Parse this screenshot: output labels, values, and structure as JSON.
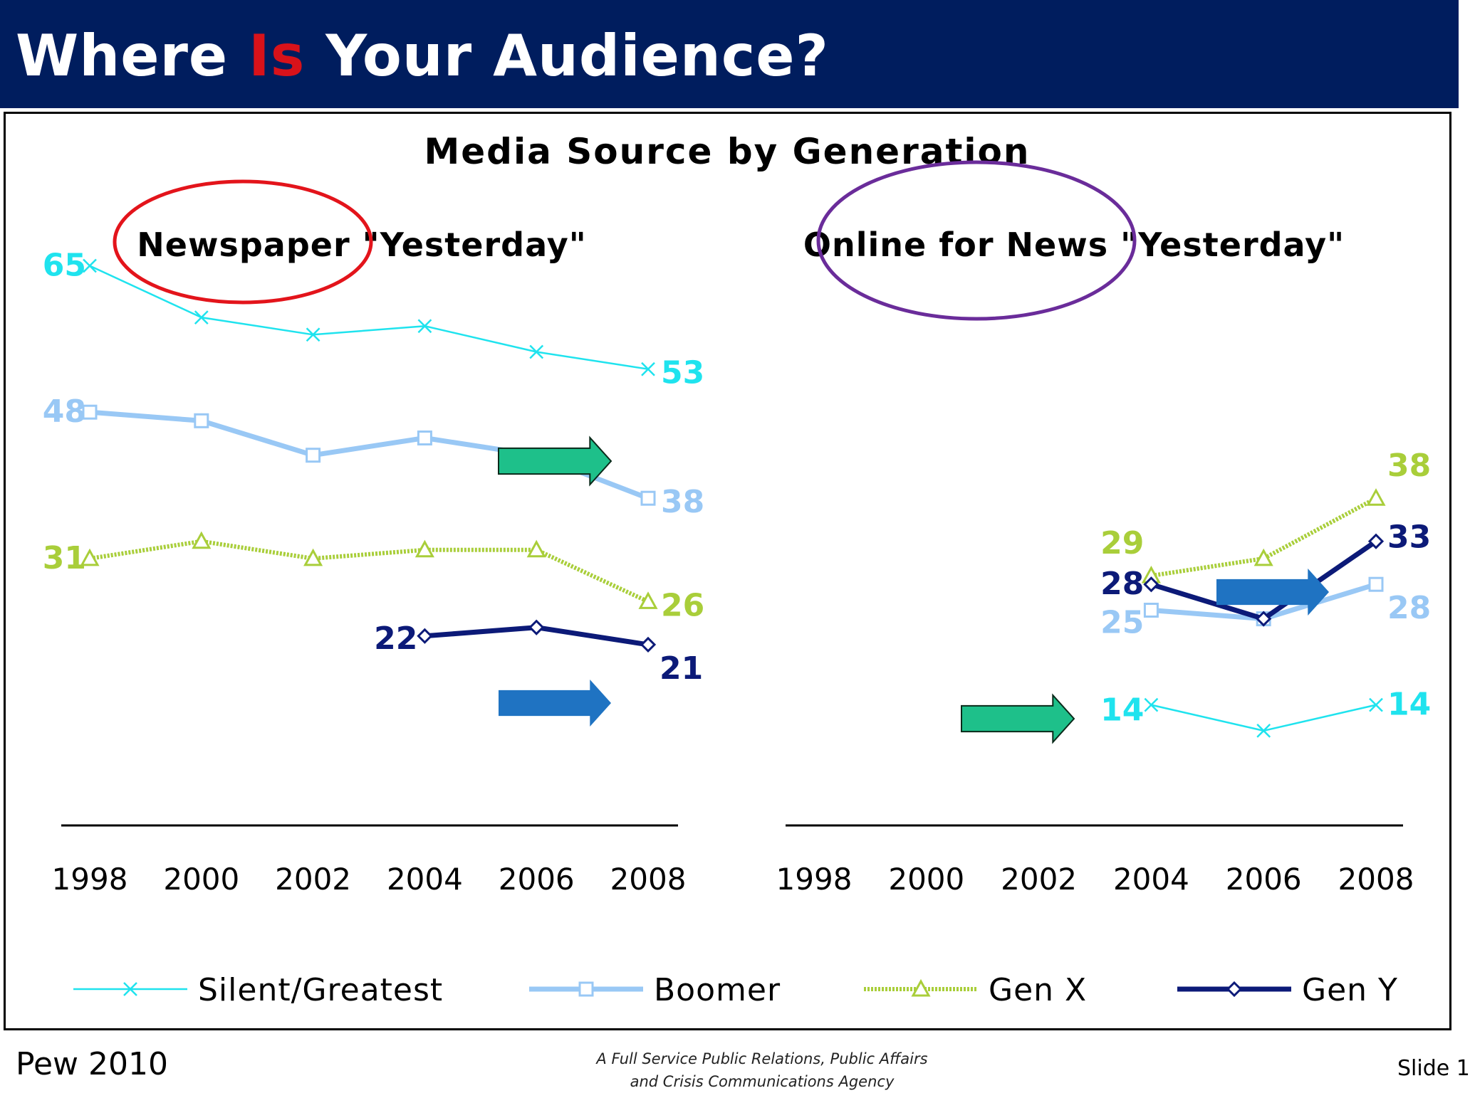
{
  "slide": {
    "title_part1": "Where ",
    "title_accent": "Is",
    "title_part2": " Your Audience?",
    "source": "Pew 2010",
    "tagline_line1": "A Full Service Public Relations, Public Affairs",
    "tagline_line2": "and Crisis Communications Agency",
    "slide_number": "Slide 1",
    "colors": {
      "header_bg": "#001d5e",
      "accent": "#d8121a"
    }
  },
  "chart_data": {
    "type": "line",
    "title": "Media Source by Generation",
    "x": [
      1998,
      2000,
      2002,
      2004,
      2006,
      2008
    ],
    "legend": [
      {
        "name": "Silent/Greatest",
        "color": "#1fe3ee",
        "marker": "x"
      },
      {
        "name": "Boomer",
        "color": "#99c8f5",
        "marker": "square"
      },
      {
        "name": "Gen X",
        "color": "#a9ce3a",
        "marker": "triangle"
      },
      {
        "name": "Gen Y",
        "color": "#0c1a78",
        "marker": "diamond"
      }
    ],
    "legend_position": "bottom",
    "grid": false,
    "panels": [
      {
        "title_highlight": "Newspaper",
        "title_rest": " \"Yesterday\"",
        "highlight_color": "#e3141b",
        "ylim": [
          0,
          80
        ],
        "series": [
          {
            "name": "Silent/Greatest",
            "x": [
              1998,
              2000,
              2002,
              2004,
              2006,
              2008
            ],
            "values": [
              65,
              59,
              57,
              58,
              55,
              53
            ],
            "labels": {
              "start": "65",
              "end": "53"
            }
          },
          {
            "name": "Boomer",
            "x": [
              1998,
              2000,
              2002,
              2004,
              2006,
              2008
            ],
            "values": [
              48,
              47,
              43,
              45,
              43,
              38
            ],
            "labels": {
              "start": "48",
              "end": "38"
            }
          },
          {
            "name": "Gen X",
            "x": [
              1998,
              2000,
              2002,
              2004,
              2006,
              2008
            ],
            "values": [
              31,
              33,
              31,
              32,
              32,
              26
            ],
            "labels": {
              "start": "31",
              "end": "26"
            }
          },
          {
            "name": "Gen Y",
            "x": [
              2004,
              2006,
              2008
            ],
            "values": [
              22,
              23,
              21
            ],
            "labels": {
              "start": "22",
              "end": "21"
            }
          }
        ],
        "arrows": [
          {
            "color": "#1ec08a",
            "points_to": "Silent/Greatest 2006-2008"
          },
          {
            "color": "#1f73c2",
            "points_to": "Gen Y 2006-2008"
          }
        ]
      },
      {
        "title_highlight": "Online for News",
        "title_rest": " \"Yesterday\"",
        "highlight_color": "#6a2c9a",
        "ylim": [
          0,
          80
        ],
        "series": [
          {
            "name": "Silent/Greatest",
            "x": [
              2004,
              2006,
              2008
            ],
            "values": [
              14,
              11,
              14
            ],
            "labels": {
              "start": "14",
              "end": "14"
            }
          },
          {
            "name": "Boomer",
            "x": [
              2004,
              2006,
              2008
            ],
            "values": [
              25,
              24,
              28
            ],
            "labels": {
              "start": "25",
              "end": "28"
            }
          },
          {
            "name": "Gen X",
            "x": [
              2004,
              2006,
              2008
            ],
            "values": [
              29,
              31,
              38
            ],
            "labels": {
              "start": "29",
              "end": "38"
            }
          },
          {
            "name": "Gen Y",
            "x": [
              2004,
              2006,
              2008
            ],
            "values": [
              28,
              24,
              33
            ],
            "labels": {
              "start": "28",
              "end": "33"
            }
          }
        ],
        "arrows": [
          {
            "color": "#1ec08a",
            "points_to": "Silent/Greatest 2004"
          },
          {
            "color": "#1f73c2",
            "points_to": "Gen X / Gen Y 2006-2008"
          }
        ]
      }
    ]
  }
}
